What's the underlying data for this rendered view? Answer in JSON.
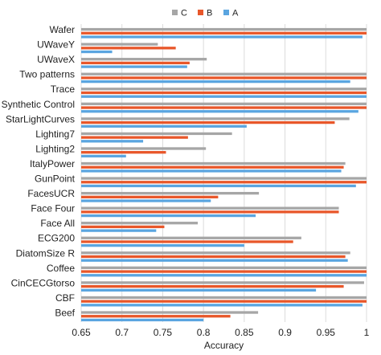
{
  "chart_data": {
    "type": "bar",
    "orientation": "horizontal",
    "xlabel": "Accuracy",
    "ylabel": "",
    "title": "",
    "xlim": [
      0.65,
      1.0
    ],
    "xticks": [
      "0.65",
      "0.7",
      "0.75",
      "0.8",
      "0.85",
      "0.9",
      "0.95",
      "1"
    ],
    "grid": "vertical",
    "legend_position": "top-center",
    "categories": [
      "Wafer",
      "UWaveY",
      "UWaveX",
      "Two patterns",
      "Trace",
      "Synthetic Control",
      "StarLightCurves",
      "Lighting7",
      "Lighting2",
      "ItalyPower",
      "GunPoint",
      "FacesUCR",
      "Face Four",
      "Face All",
      "ECG200",
      "DiatomSize R",
      "Coffee",
      "CinCECGtorso",
      "CBF",
      "Beef"
    ],
    "series": [
      {
        "name": "C",
        "color": "#a6a6a6",
        "values": [
          1.0,
          0.744,
          0.804,
          1.0,
          1.0,
          1.0,
          0.979,
          0.835,
          0.803,
          0.974,
          1.0,
          0.868,
          0.966,
          0.793,
          0.92,
          0.98,
          1.0,
          0.997,
          1.0,
          0.867
        ]
      },
      {
        "name": "B",
        "color": "#e8572a",
        "values": [
          1.0,
          0.766,
          0.783,
          1.0,
          1.0,
          1.0,
          0.961,
          0.781,
          0.754,
          0.972,
          1.0,
          0.818,
          0.966,
          0.752,
          0.91,
          0.974,
          1.0,
          0.972,
          1.0,
          0.833
        ]
      },
      {
        "name": "A",
        "color": "#5aa5e0",
        "values": [
          0.995,
          0.688,
          0.78,
          0.98,
          1.0,
          0.99,
          0.853,
          0.726,
          0.705,
          0.969,
          0.987,
          0.809,
          0.864,
          0.742,
          0.85,
          0.977,
          1.0,
          0.938,
          0.995,
          0.8
        ]
      }
    ]
  }
}
